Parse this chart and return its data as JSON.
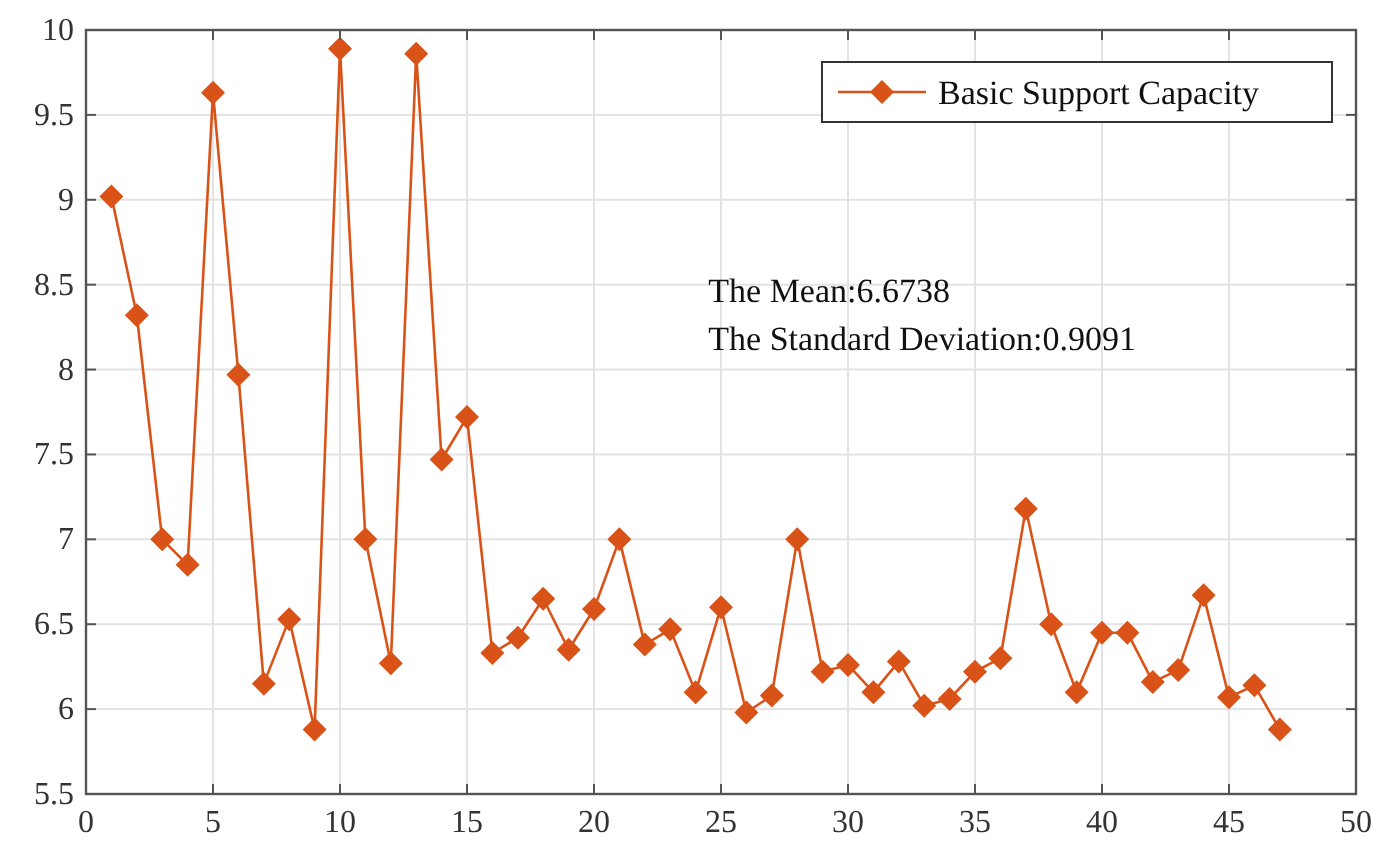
{
  "chart_data": {
    "type": "line",
    "x": [
      1,
      2,
      3,
      4,
      5,
      6,
      7,
      8,
      9,
      10,
      11,
      12,
      13,
      14,
      15,
      16,
      17,
      18,
      19,
      20,
      21,
      22,
      23,
      24,
      25,
      26,
      27,
      28,
      29,
      30,
      31,
      32,
      33,
      34,
      35,
      36,
      37,
      38,
      39,
      40,
      41,
      42,
      43,
      44,
      45,
      46,
      47
    ],
    "series": [
      {
        "name": "Basic Support Capacity",
        "color": "#d95319",
        "values": [
          9.02,
          8.32,
          7.0,
          6.85,
          9.63,
          7.97,
          6.15,
          6.53,
          5.88,
          9.89,
          7.0,
          6.27,
          9.86,
          7.47,
          7.72,
          6.33,
          6.42,
          6.65,
          6.35,
          6.59,
          7.0,
          6.38,
          6.47,
          6.1,
          6.6,
          5.98,
          6.08,
          7.0,
          6.22,
          6.26,
          6.1,
          6.28,
          6.02,
          6.06,
          6.22,
          6.3,
          7.18,
          6.5,
          6.1,
          6.45,
          6.45,
          6.16,
          6.23,
          6.67,
          6.07,
          6.14,
          5.88
        ]
      }
    ],
    "xlim": [
      0,
      50
    ],
    "xticks": [
      0,
      5,
      10,
      15,
      20,
      25,
      30,
      35,
      40,
      45,
      50
    ],
    "ylim": [
      5.5,
      10
    ],
    "yticks": [
      5.5,
      6,
      6.5,
      7,
      7.5,
      8,
      8.5,
      9,
      9.5,
      10
    ],
    "grid": true,
    "legend": "top right",
    "marker": "diamond",
    "line_style": "solid",
    "annotations": [
      "The Mean:6.6738",
      "The Standard Deviation:0.9091"
    ]
  }
}
